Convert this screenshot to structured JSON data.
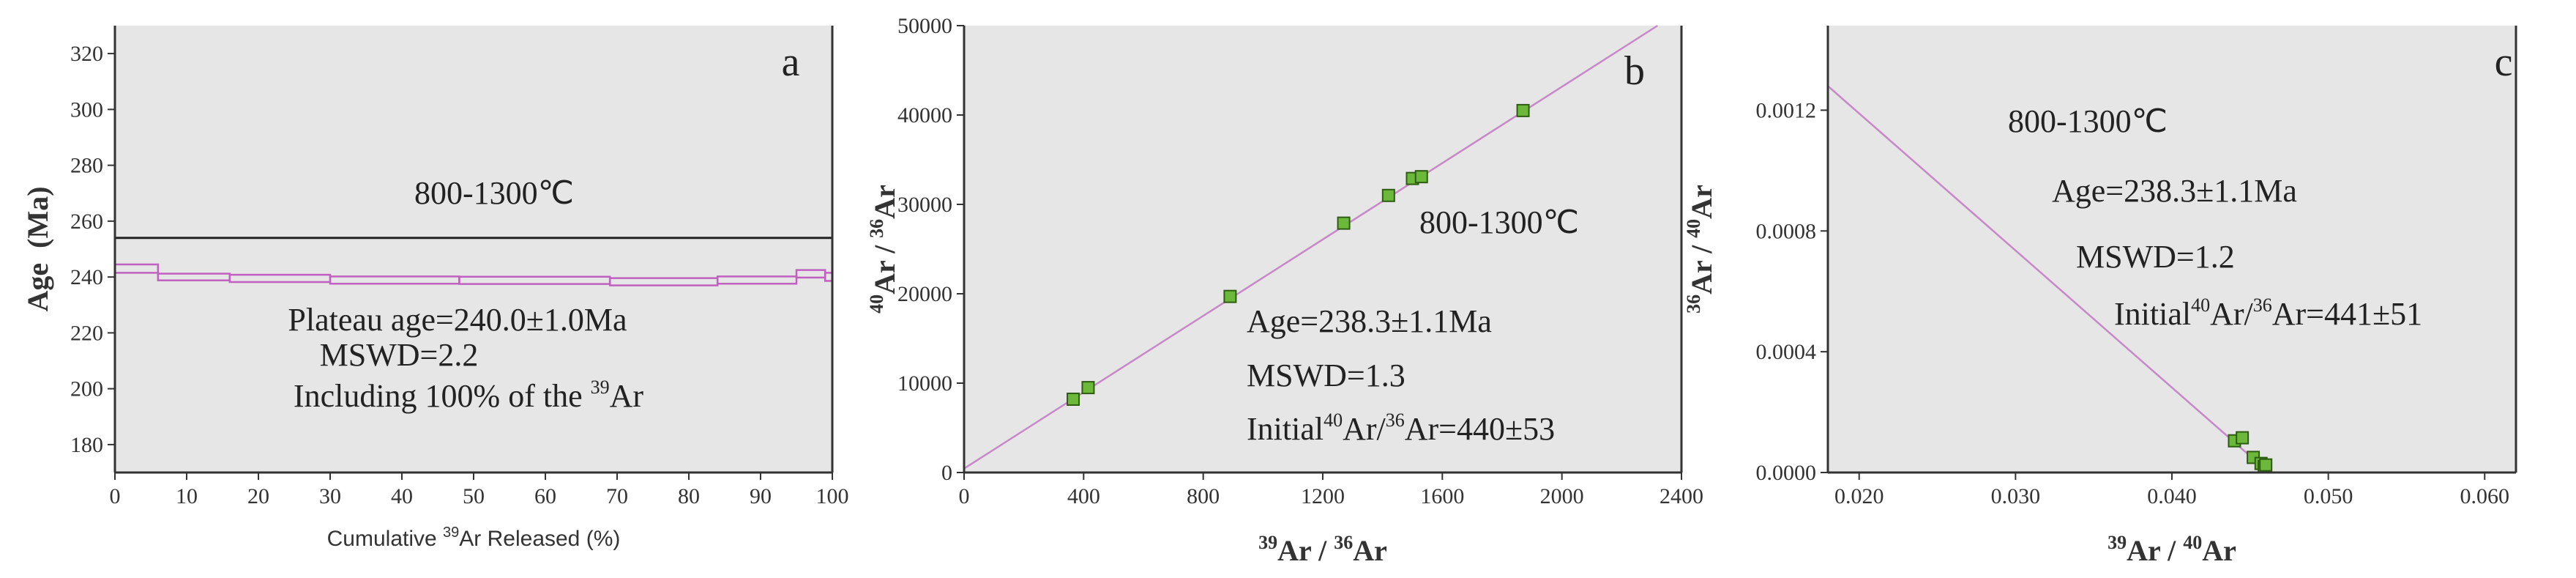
{
  "chart_data": [
    {
      "type": "step",
      "panel_label": "a",
      "xlabel_pre": "Cumulative ",
      "xlabel_sup": "39",
      "xlabel_post": "Ar Released (%)",
      "ylabel": "Age  (Ma)",
      "xlim": [
        0,
        100
      ],
      "ylim": [
        170,
        330
      ],
      "xticks": [
        "0",
        "10",
        "20",
        "30",
        "40",
        "50",
        "60",
        "70",
        "80",
        "90",
        "100"
      ],
      "yticks": [
        "180",
        "200",
        "220",
        "240",
        "260",
        "280",
        "300",
        "320"
      ],
      "temperature_label": "800-1300℃",
      "plateau_line_age": 254,
      "steps": [
        {
          "x0": 0,
          "x1": 6,
          "top": 244.5,
          "bottom": 241.5
        },
        {
          "x0": 6,
          "x1": 16,
          "top": 241.2,
          "bottom": 238.8
        },
        {
          "x0": 16,
          "x1": 30,
          "top": 240.8,
          "bottom": 238.2
        },
        {
          "x0": 30,
          "x1": 48,
          "top": 240.2,
          "bottom": 237.6
        },
        {
          "x0": 48,
          "x1": 69,
          "top": 240.1,
          "bottom": 237.5
        },
        {
          "x0": 69,
          "x1": 84,
          "top": 239.6,
          "bottom": 237.0
        },
        {
          "x0": 84,
          "x1": 95,
          "top": 240.2,
          "bottom": 237.6
        },
        {
          "x0": 95,
          "x1": 99,
          "top": 242.5,
          "bottom": 239.8
        },
        {
          "x0": 99,
          "x1": 100,
          "top": 241.5,
          "bottom": 238.6
        }
      ],
      "annotations": {
        "plateau": "Plateau age=240.0±1.0Ma",
        "mswd": "MSWD=2.2",
        "including_pre": "Including 100% of the ",
        "including_sup": "39",
        "including_post": "Ar"
      }
    },
    {
      "type": "scatter",
      "panel_label": "b",
      "xlabel_sup1": "39",
      "xlabel_mid": "Ar / ",
      "xlabel_sup2": "36",
      "xlabel_post": "Ar",
      "ylabel_sup1": "40",
      "ylabel_mid": "Ar / ",
      "ylabel_sup2": "36",
      "ylabel_post": "Ar",
      "xlim": [
        0,
        2400
      ],
      "ylim": [
        0,
        50000
      ],
      "xticks": [
        "0",
        "400",
        "800",
        "1200",
        "1600",
        "2000",
        "2400"
      ],
      "yticks": [
        "0",
        "10000",
        "20000",
        "30000",
        "40000",
        "50000"
      ],
      "temperature_label": "800-1300℃",
      "points": [
        {
          "x": 365,
          "y": 8200
        },
        {
          "x": 415,
          "y": 9500
        },
        {
          "x": 890,
          "y": 19700
        },
        {
          "x": 1270,
          "y": 27900
        },
        {
          "x": 1420,
          "y": 31000
        },
        {
          "x": 1500,
          "y": 32900
        },
        {
          "x": 1530,
          "y": 33100
        },
        {
          "x": 1870,
          "y": 40500
        }
      ],
      "line": {
        "x1": 0,
        "y1": 440,
        "x2": 2320,
        "y2": 50000
      },
      "annotations": {
        "age": "Age=238.3±1.1Ma",
        "mswd": "MSWD=1.3",
        "initial_pre": "Initial",
        "initial_sup1": "40",
        "initial_mid": "Ar/",
        "initial_sup2": "36",
        "initial_post": "Ar=440±53"
      }
    },
    {
      "type": "scatter",
      "panel_label": "c",
      "xlabel_sup1": "39",
      "xlabel_mid": "Ar / ",
      "xlabel_sup2": "40",
      "xlabel_post": "Ar",
      "ylabel_sup1": "36",
      "ylabel_mid": "Ar / ",
      "ylabel_sup2": "40",
      "ylabel_post": "Ar",
      "xlim": [
        0.018,
        0.062
      ],
      "ylim": [
        0,
        0.00148
      ],
      "xticks": [
        {
          "v": 0.02,
          "label": "0.020"
        },
        {
          "v": 0.03,
          "label": "0.030"
        },
        {
          "v": 0.04,
          "label": "0.040"
        },
        {
          "v": 0.05,
          "label": "0.050"
        },
        {
          "v": 0.06,
          "label": "0.060"
        }
      ],
      "yticks": [
        {
          "v": 0,
          "label": "0.0000"
        },
        {
          "v": 0.0004,
          "label": "0.0004"
        },
        {
          "v": 0.0008,
          "label": "0.0008"
        },
        {
          "v": 0.0012,
          "label": "0.0012"
        }
      ],
      "temperature_label": "800-1300℃",
      "points": [
        {
          "x": 0.044,
          "y": 0.000105
        },
        {
          "x": 0.0445,
          "y": 0.000115
        },
        {
          "x": 0.0452,
          "y": 5e-05
        },
        {
          "x": 0.0457,
          "y": 3e-05
        },
        {
          "x": 0.0459,
          "y": 2e-05
        },
        {
          "x": 0.046,
          "y": 2.5e-05
        }
      ],
      "line": {
        "x1": 0.018,
        "y1": 0.00128,
        "x2": 0.0462,
        "y2": 0.0
      },
      "annotations": {
        "age": "Age=238.3±1.1Ma",
        "mswd": "MSWD=1.2",
        "initial_pre": "Initial",
        "initial_sup1": "40",
        "initial_mid": "Ar/",
        "initial_sup2": "36",
        "initial_post": "Ar=441±51"
      }
    }
  ],
  "colors": {
    "plot_bg": "#e6e6e6",
    "axis": "#333333",
    "fit_line": "#c888c8",
    "step_fill": "#c060c0",
    "plateau_line": "#222222",
    "point_fill": "#6cb83a",
    "point_stroke": "#2e5d12"
  }
}
